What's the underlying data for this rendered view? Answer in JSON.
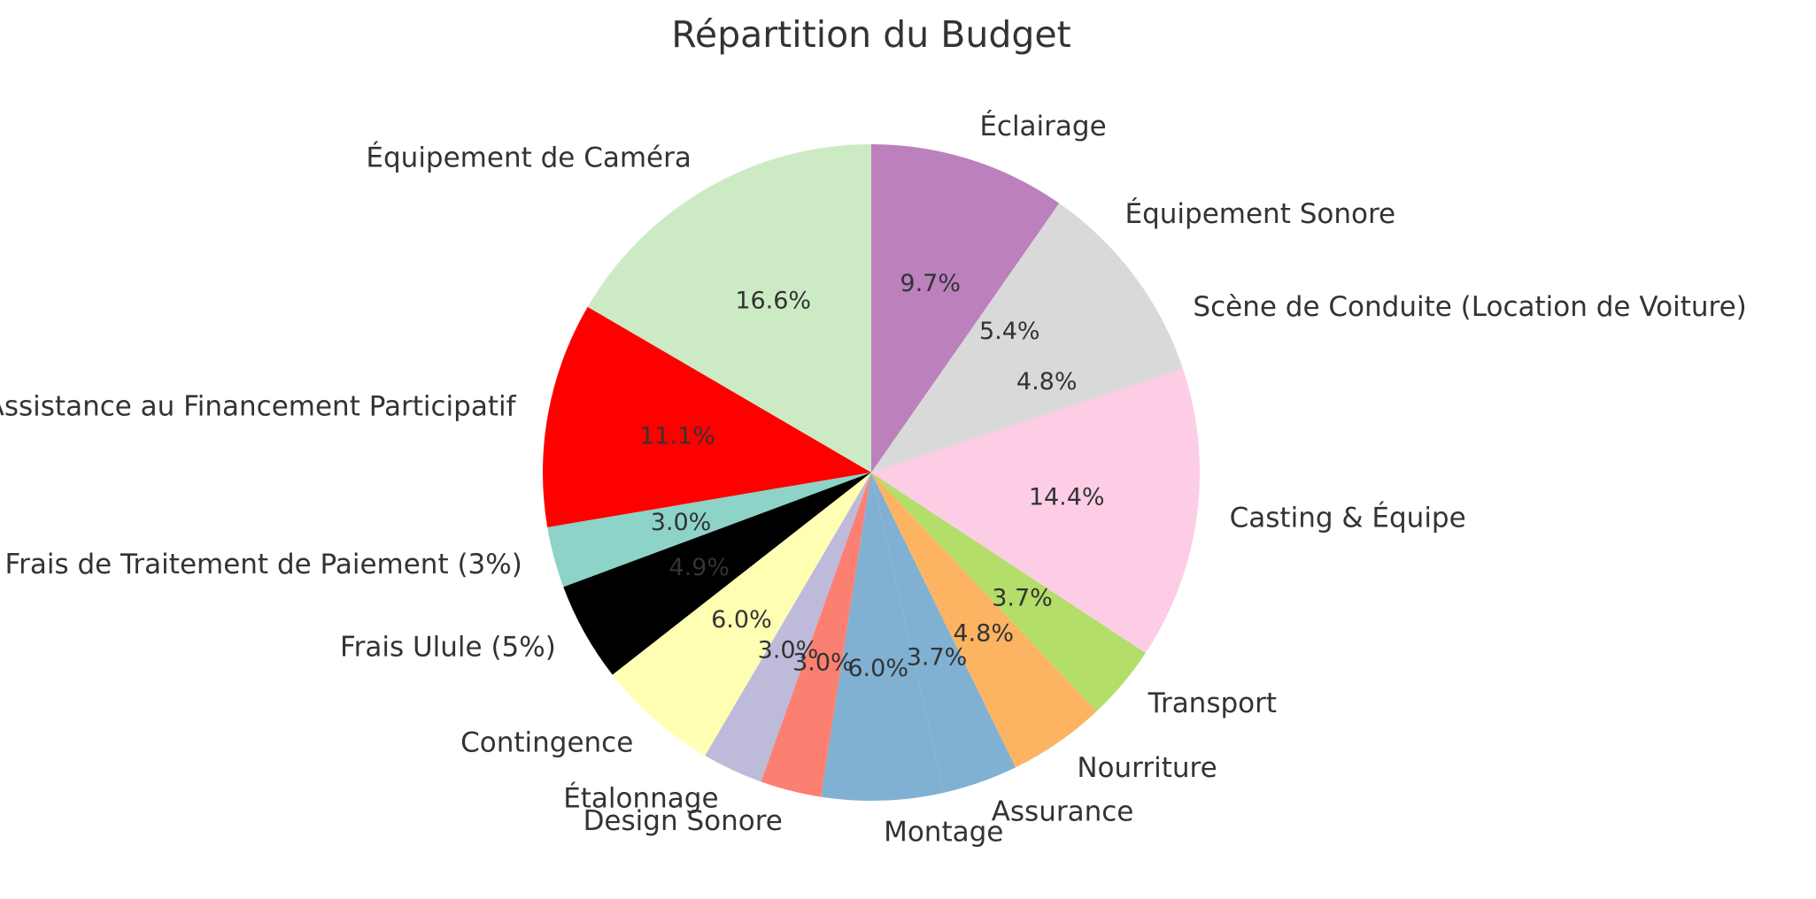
{
  "chart_data": {
    "type": "pie",
    "title": "Répartition du Budget",
    "start_angle_deg": 90,
    "direction": "counterclockwise",
    "slices": [
      {
        "label": "Équipement de Caméra",
        "value": 16.6,
        "pct_text": "16.6%",
        "color": "#ccebc5"
      },
      {
        "label": "Assistance au Financement Participatif",
        "value": 11.1,
        "pct_text": "11.1%",
        "color": "#ff0000"
      },
      {
        "label": "Frais de Traitement de Paiement (3%)",
        "value": 3.0,
        "pct_text": "3.0%",
        "color": "#8dd3c7"
      },
      {
        "label": "Frais Ulule (5%)",
        "value": 4.9,
        "pct_text": "4.9%",
        "color": "#000000"
      },
      {
        "label": "Contingence",
        "value": 6.0,
        "pct_text": "6.0%",
        "color": "#ffffb3"
      },
      {
        "label": "Étalonnage",
        "value": 3.0,
        "pct_text": "3.0%",
        "color": "#bebada"
      },
      {
        "label": "Design Sonore",
        "value": 3.0,
        "pct_text": "3.0%",
        "color": "#fb8072"
      },
      {
        "label": "Montage",
        "value": 6.0,
        "pct_text": "6.0%",
        "color": "#80b1d3"
      },
      {
        "label": "Assurance",
        "value": 3.7,
        "pct_text": "3.7%",
        "color": "#80b1d3"
      },
      {
        "label": "Nourriture",
        "value": 4.8,
        "pct_text": "4.8%",
        "color": "#fdb462"
      },
      {
        "label": "Transport",
        "value": 3.7,
        "pct_text": "3.7%",
        "color": "#b3de69"
      },
      {
        "label": "Casting & Équipe",
        "value": 14.4,
        "pct_text": "14.4%",
        "color": "#fccde5"
      },
      {
        "label": "Scène de Conduite (Location de Voiture)",
        "value": 4.8,
        "pct_text": "4.8%",
        "color": "#d9d9d9"
      },
      {
        "label": "Équipement Sonore",
        "value": 5.4,
        "pct_text": "5.4%",
        "color": "#d9d9d9"
      },
      {
        "label": "Éclairage",
        "value": 9.7,
        "pct_text": "9.7%",
        "color": "#bc80bd"
      }
    ]
  }
}
